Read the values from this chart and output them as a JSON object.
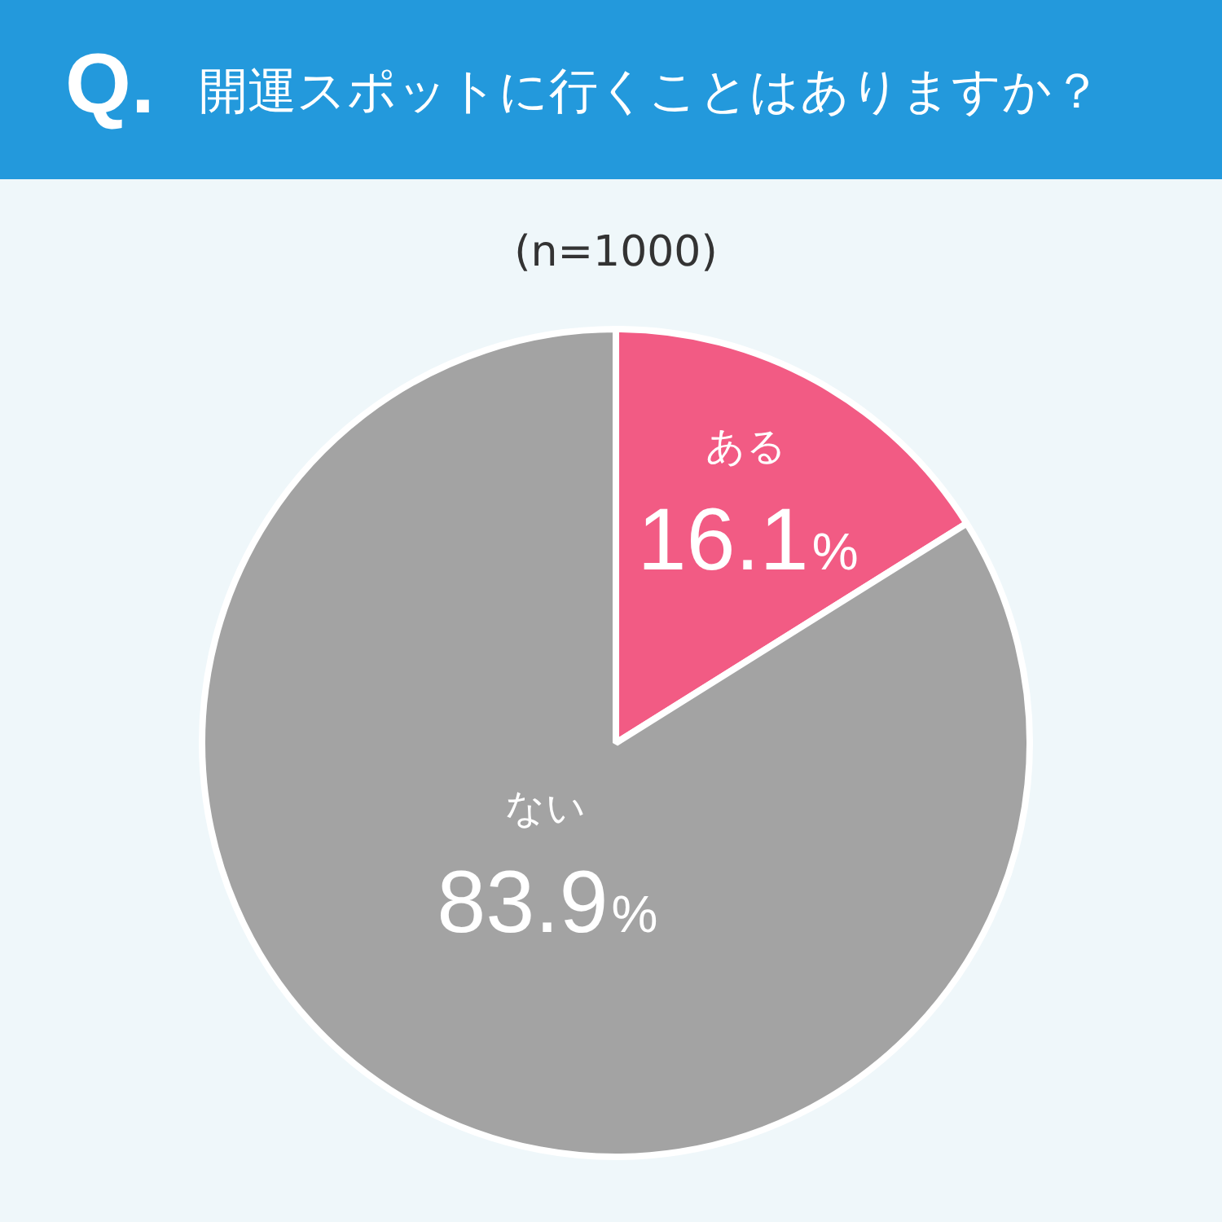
{
  "chart_data": {
    "type": "pie",
    "title": "開運スポットに行くことはありますか？",
    "subtitle": "(n=1000)",
    "annotations": [
      "Q."
    ],
    "categories": [
      "ある",
      "ない"
    ],
    "values": [
      16.1,
      83.9
    ],
    "colors": [
      "#f25b84",
      "#a3a3a3"
    ],
    "value_labels": [
      "16.1%",
      "83.9%"
    ],
    "legend": false
  }
}
